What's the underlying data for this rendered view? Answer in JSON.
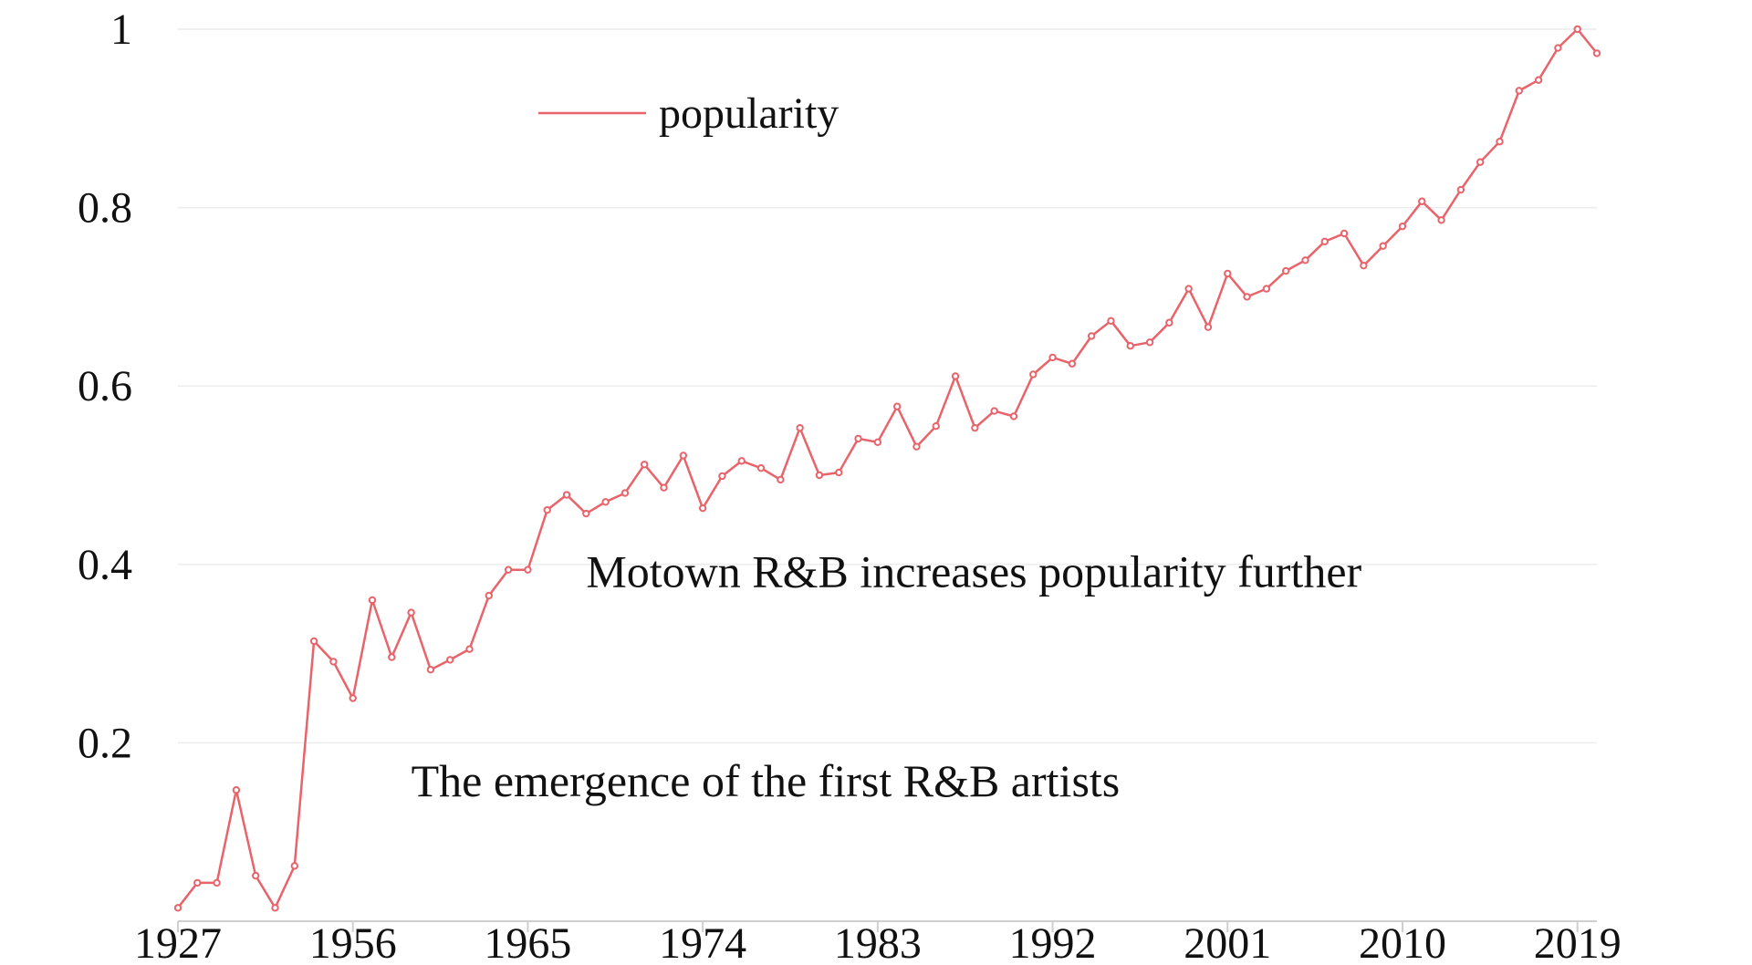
{
  "chart_data": {
    "type": "line",
    "x_tick_labels": [
      "1927",
      "1956",
      "1965",
      "1974",
      "1983",
      "1992",
      "2001",
      "2010",
      "2019"
    ],
    "x_tick_indices": [
      0,
      9,
      18,
      27,
      36,
      45,
      54,
      63,
      72
    ],
    "y_ticks": [
      {
        "value": 0.2,
        "label": "0.2"
      },
      {
        "value": 0.4,
        "label": "0.4"
      },
      {
        "value": 0.6,
        "label": "0.6"
      },
      {
        "value": 0.8,
        "label": "0.8"
      },
      {
        "value": 1.0,
        "label": "1"
      }
    ],
    "ylim": [
      0,
      1.0
    ],
    "grid": true,
    "legend": {
      "position": "top-center"
    },
    "series": [
      {
        "name": "popularity",
        "color": "#e8636a",
        "values": [
          0.015,
          0.043,
          0.043,
          0.147,
          0.051,
          0.015,
          0.062,
          0.314,
          0.291,
          0.25,
          0.36,
          0.296,
          0.346,
          0.282,
          0.293,
          0.305,
          0.365,
          0.394,
          0.394,
          0.461,
          0.478,
          0.457,
          0.47,
          0.48,
          0.512,
          0.486,
          0.522,
          0.463,
          0.499,
          0.516,
          0.508,
          0.495,
          0.553,
          0.5,
          0.503,
          0.541,
          0.537,
          0.577,
          0.532,
          0.555,
          0.611,
          0.553,
          0.572,
          0.566,
          0.613,
          0.632,
          0.625,
          0.656,
          0.673,
          0.645,
          0.649,
          0.671,
          0.709,
          0.666,
          0.726,
          0.7,
          0.709,
          0.729,
          0.741,
          0.762,
          0.771,
          0.735,
          0.757,
          0.779,
          0.807,
          0.786,
          0.82,
          0.851,
          0.874,
          0.931,
          0.943,
          0.979,
          1.0,
          0.973
        ]
      }
    ],
    "annotations": [
      {
        "text": "The emergence of the first R&B artists",
        "at_index": 12,
        "at_value": 0.14
      },
      {
        "text": "Motown R&B increases popularity further",
        "at_index": 21,
        "at_value": 0.375
      }
    ]
  }
}
